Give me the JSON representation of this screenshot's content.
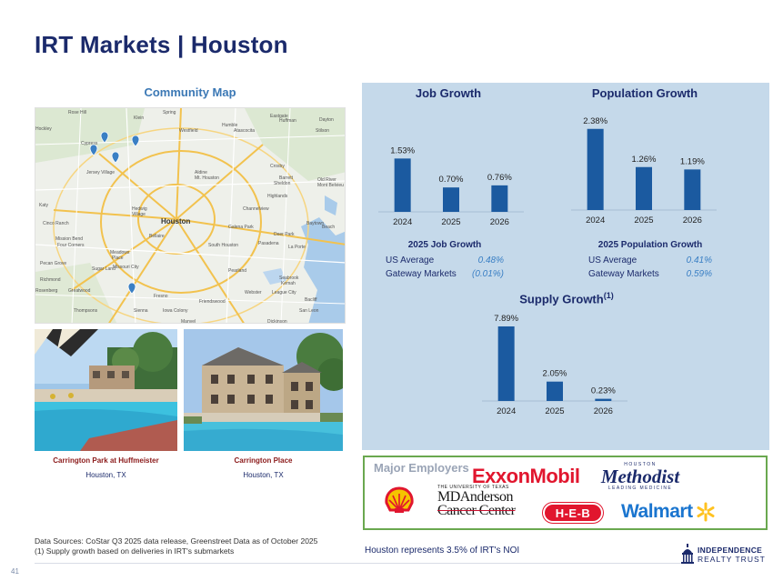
{
  "title": "IRT Markets | Houston",
  "map": {
    "title": "Community Map",
    "labels": [
      "Houston",
      "Katy",
      "Cinco Ranch",
      "Sugar Land",
      "Pearland",
      "Pasadena",
      "Baytown",
      "Humble",
      "Spring",
      "Tomball",
      "Cypress",
      "Kingwood",
      "Conroe",
      "La Porte",
      "League City",
      "Friendswood",
      "Missouri City",
      "Richmond",
      "Rosenberg",
      "Jersey Village",
      "Aldine",
      "Channelview",
      "Crosby",
      "Highlands",
      "Deer Park",
      "Galena Park",
      "South Houston",
      "Bellaire",
      "Hedwig Village",
      "Mission Bend",
      "Four Corners",
      "Fresno",
      "Manvel",
      "Alvin",
      "Dayton",
      "Sheldon",
      "Webster",
      "Seabrook",
      "Beach City",
      "Fulshear",
      "Mont Belvieu",
      "Thompsons",
      "Sienna",
      "Iowa Colony",
      "Kemah",
      "Bacliff",
      "San Leon",
      "Dickinson",
      "Meadows Place",
      "Pecan Grove",
      "Hockley",
      "Rose Hill",
      "Klein",
      "Westfield",
      "Huffman",
      "Stilson",
      "Old River-Winfree",
      "Hufsmith",
      "Eastgate",
      "Barrett",
      "Atascocita",
      "Fulshear",
      "Greatwood"
    ]
  },
  "photos": [
    {
      "name": "Carrington Park at Huffmeister",
      "location": "Houston, TX"
    },
    {
      "name": "Carrington Place",
      "location": "Houston, TX"
    }
  ],
  "charts": {
    "job_growth": {
      "title": "Job Growth",
      "chart_data": {
        "type": "bar",
        "categories": [
          "2024",
          "2025",
          "2026"
        ],
        "values": [
          1.53,
          0.7,
          0.76
        ],
        "labels": [
          "1.53%",
          "0.70%",
          "0.76%"
        ],
        "ylim": [
          0,
          2.4
        ],
        "color": "#1b5aa0"
      }
    },
    "population_growth": {
      "title": "Population Growth",
      "chart_data": {
        "type": "bar",
        "categories": [
          "2024",
          "2025",
          "2026"
        ],
        "values": [
          2.38,
          1.26,
          1.19
        ],
        "labels": [
          "2.38%",
          "1.26%",
          "1.19%"
        ],
        "ylim": [
          0,
          2.4
        ],
        "color": "#1b5aa0"
      }
    },
    "supply_growth": {
      "title": "Supply Growth",
      "superscript": "(1)",
      "chart_data": {
        "type": "bar",
        "categories": [
          "2024",
          "2025",
          "2026"
        ],
        "values": [
          7.89,
          2.05,
          0.23
        ],
        "labels": [
          "7.89%",
          "2.05%",
          "0.23%"
        ],
        "ylim": [
          0,
          7.89
        ],
        "color": "#1b5aa0"
      }
    }
  },
  "job_stats": {
    "title": "2025 Job Growth",
    "rows": [
      {
        "label": "US Average",
        "value": "0.48%"
      },
      {
        "label": "Gateway Markets",
        "value": "(0.01%)"
      }
    ]
  },
  "pop_stats": {
    "title": "2025 Population Growth",
    "rows": [
      {
        "label": "US Average",
        "value": "0.41%"
      },
      {
        "label": "Gateway Markets",
        "value": "0.59%"
      }
    ]
  },
  "employers": {
    "label": "Major Employers",
    "exxon": "ExxonMobil",
    "methodist_top": "HOUSTON",
    "methodist": "Methodist",
    "methodist_sub": "LEADING MEDICINE",
    "mda_top": "THE UNIVERSITY OF TEXAS",
    "mda_1": "MDAnderson",
    "mda_2": "Cancer Center",
    "heb": "H-E-B",
    "walmart": "Walmart"
  },
  "sources": {
    "line1": "Data Sources: CoStar Q3 2025 data release, Greenstreet Data as of October 2025",
    "line2": "(1)  Supply growth based on deliveries in IRT's submarkets"
  },
  "noi": "Houston represents 3.5% of IRT's NOI",
  "page_number": "41",
  "brand": {
    "line1": "INDEPENDENCE",
    "line2": "REALTY TRUST"
  }
}
